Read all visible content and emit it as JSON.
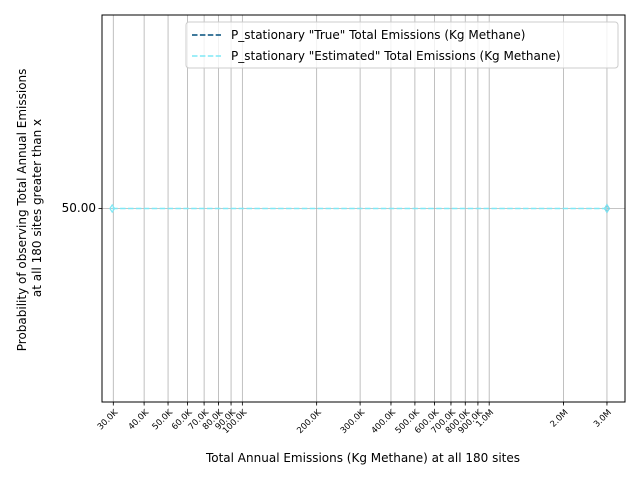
{
  "chart_data": {
    "type": "line",
    "xlabel": "Total Annual Emissions (Kg Methane) at all 180 sites",
    "ylabel_lines": [
      "Probability of observing Total Annual Emissions",
      "at all 180 sites greater than x"
    ],
    "x_scale": "log",
    "xlim": [
      27000,
      3550000
    ],
    "ylim": [
      30,
      70
    ],
    "x_ticks": [
      {
        "value": 30000,
        "label": "30.0K"
      },
      {
        "value": 40000,
        "label": "40.0K"
      },
      {
        "value": 50000,
        "label": "50.0K"
      },
      {
        "value": 60000,
        "label": "60.0K"
      },
      {
        "value": 70000,
        "label": "70.0K"
      },
      {
        "value": 80000,
        "label": "80.0K"
      },
      {
        "value": 90000,
        "label": "90.0K"
      },
      {
        "value": 100000,
        "label": "100.0K"
      },
      {
        "value": 200000,
        "label": "200.0K"
      },
      {
        "value": 300000,
        "label": "300.0K"
      },
      {
        "value": 400000,
        "label": "400.0K"
      },
      {
        "value": 500000,
        "label": "500.0K"
      },
      {
        "value": 600000,
        "label": "600.0K"
      },
      {
        "value": 700000,
        "label": "700.0K"
      },
      {
        "value": 800000,
        "label": "800.0K"
      },
      {
        "value": 900000,
        "label": "900.0K"
      },
      {
        "value": 1000000,
        "label": "1.0M"
      },
      {
        "value": 2000000,
        "label": "2.0M"
      },
      {
        "value": 3000000,
        "label": "3.0M"
      }
    ],
    "y_ticks": [
      {
        "value": 50,
        "label": "50.00"
      }
    ],
    "grid": true,
    "legend_position": "top-right",
    "series": [
      {
        "name": "P_stationary \"True\" Total Emissions (Kg Methane)",
        "color": "#004f7c",
        "dash": "dashed",
        "marker": "diamond",
        "points": [
          {
            "x": 3000000,
            "y": 50
          }
        ]
      },
      {
        "name": "P_stationary \"Estimated\" Total Emissions (Kg Methane)",
        "color": "#7fe8f5",
        "dash": "dashed",
        "marker": "diamond",
        "points": [
          {
            "x": 29700,
            "y": 50
          },
          {
            "x": 3000000,
            "y": 50
          }
        ]
      }
    ]
  }
}
